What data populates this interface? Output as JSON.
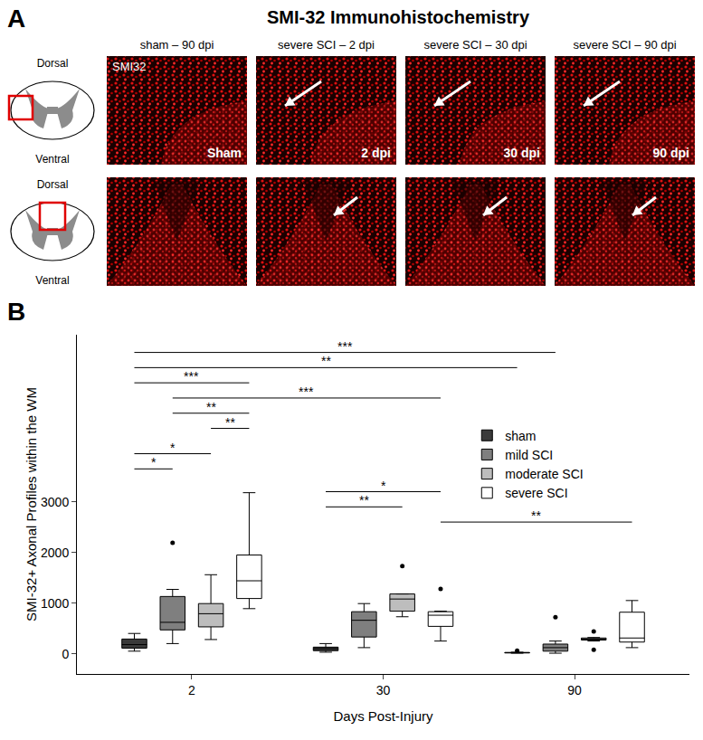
{
  "panel_a": {
    "letter": "A",
    "title": "SMI-32 Immunohistochemistry",
    "columns": [
      "sham – 90 dpi",
      "severe SCI – 2 dpi",
      "severe SCI – 30 dpi",
      "severe SCI – 90 dpi"
    ],
    "stain_label": "SMI32",
    "image_labels": [
      "Sham",
      "2 dpi",
      "30 dpi",
      "90 dpi"
    ],
    "schematic_labels": {
      "dorsal": "Dorsal",
      "ventral": "Ventral"
    }
  },
  "panel_b": {
    "letter": "B"
  },
  "chart_data": {
    "type": "box",
    "x_label": "Days Post-Injury",
    "y_label": "SMI-32+ Axonal Profiles within the WM",
    "categories": [
      "2",
      "30",
      "90"
    ],
    "ylim": [
      -400,
      6300
    ],
    "yticks": [
      0,
      1000,
      2000,
      3000
    ],
    "grid": false,
    "legend": "upper right",
    "series": [
      {
        "name": "sham",
        "color": "#3a3a3a",
        "lower": [
          50,
          30,
          10
        ],
        "q1": [
          110,
          60,
          15
        ],
        "median": [
          180,
          100,
          20
        ],
        "q3": [
          290,
          130,
          25
        ],
        "upper": [
          400,
          200,
          30
        ],
        "outliers": [
          [],
          [],
          [
            60
          ]
        ]
      },
      {
        "name": "mild SCI",
        "color": "#7f7f7f",
        "lower": [
          200,
          120,
          10
        ],
        "q1": [
          470,
          330,
          50
        ],
        "median": [
          620,
          660,
          120
        ],
        "q3": [
          1130,
          830,
          190
        ],
        "upper": [
          1270,
          990,
          250
        ],
        "outliers": [
          [
            2190
          ],
          [],
          [
            720
          ]
        ]
      },
      {
        "name": "moderate SCI",
        "color": "#bdbdbd",
        "lower": [
          280,
          730,
          250
        ],
        "q1": [
          530,
          840,
          270
        ],
        "median": [
          790,
          1080,
          290
        ],
        "q3": [
          990,
          1180,
          310
        ],
        "upper": [
          1560,
          1180,
          320
        ],
        "outliers": [
          [],
          [
            1730
          ],
          [
            80,
            440
          ]
        ]
      },
      {
        "name": "severe SCI",
        "color": "#ffffff",
        "lower": [
          890,
          250,
          120
        ],
        "q1": [
          1090,
          540,
          230
        ],
        "median": [
          1440,
          760,
          310
        ],
        "q3": [
          1950,
          830,
          820
        ],
        "upper": [
          3180,
          840,
          1050
        ],
        "outliers": [
          [],
          [
            1280
          ],
          []
        ]
      }
    ],
    "annotations": [
      {
        "text": "***",
        "y": 5950,
        "from": [
          "2",
          "sham"
        ],
        "to": [
          "90",
          "mild SCI"
        ]
      },
      {
        "text": "**",
        "y": 5650,
        "from": [
          "2",
          "sham"
        ],
        "to": [
          "90",
          "sham"
        ]
      },
      {
        "text": "***",
        "y": 5350,
        "from": [
          "2",
          "sham"
        ],
        "to": [
          "2",
          "severe SCI"
        ]
      },
      {
        "text": "***",
        "y": 5050,
        "from": [
          "2",
          "mild SCI"
        ],
        "to": [
          "30",
          "severe SCI"
        ]
      },
      {
        "text": "**",
        "y": 4750,
        "from": [
          "2",
          "mild SCI"
        ],
        "to": [
          "2",
          "severe SCI"
        ]
      },
      {
        "text": "**",
        "y": 4450,
        "from": [
          "2",
          "moderate SCI"
        ],
        "to": [
          "2",
          "severe SCI"
        ]
      },
      {
        "text": "*",
        "y": 3950,
        "from": [
          "2",
          "sham"
        ],
        "to": [
          "2",
          "moderate SCI"
        ]
      },
      {
        "text": "*",
        "y": 3650,
        "from": [
          "2",
          "sham"
        ],
        "to": [
          "2",
          "mild SCI"
        ]
      },
      {
        "text": "*",
        "y": 3200,
        "from": [
          "30",
          "sham"
        ],
        "to": [
          "30",
          "severe SCI"
        ]
      },
      {
        "text": "**",
        "y": 2900,
        "from": [
          "30",
          "sham"
        ],
        "to": [
          "30",
          "moderate SCI"
        ]
      },
      {
        "text": "**",
        "y": 2600,
        "from": [
          "30",
          "severe SCI"
        ],
        "to": [
          "90",
          "severe SCI"
        ]
      }
    ]
  }
}
